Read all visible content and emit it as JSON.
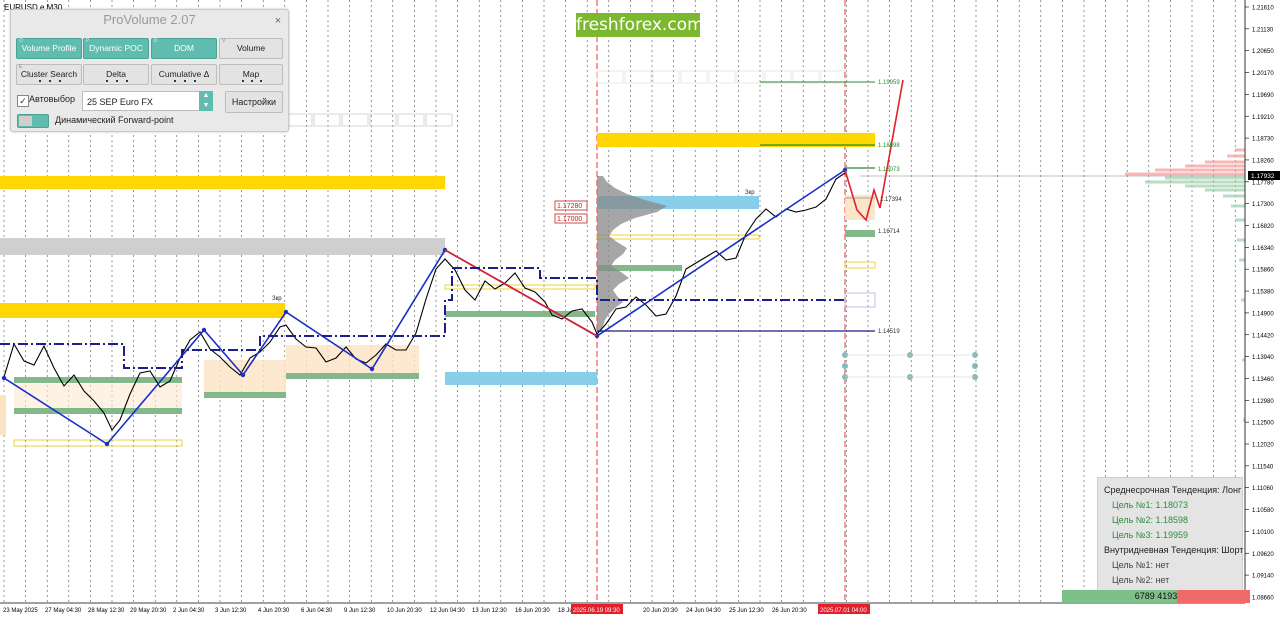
{
  "symbol": "EURUSD.e,M30",
  "brand": "freshforex.com",
  "panel": {
    "title": "ProVolume 2.07",
    "close": "×",
    "buttons": [
      {
        "label": "Volume Profile",
        "key": "O",
        "on": true
      },
      {
        "label": "Dynamic POC",
        "key": "P",
        "on": true
      },
      {
        "label": "DOM",
        "key": "D",
        "on": true
      },
      {
        "label": "Volume",
        "key": "V",
        "on": false
      },
      {
        "label": "Cluster Search",
        "key": "E",
        "on": false
      },
      {
        "label": "Delta",
        "key": "",
        "on": false
      },
      {
        "label": "Cumulative Δ",
        "key": "",
        "on": false
      },
      {
        "label": "Map",
        "key": "",
        "on": false
      }
    ],
    "autoselect_label": "Автовыбор",
    "autoselect_checked": true,
    "contract": "25 SEP Euro FX",
    "settings_label": "Настройки",
    "forward_label": "Динамический Forward-point"
  },
  "price_axis": [
    "1.21610",
    "1.21130",
    "1.20650",
    "1.20170",
    "1.19690",
    "1.19210",
    "1.18730",
    "1.18260",
    "1.17780",
    "1.17300",
    "1.16820",
    "1.16340",
    "1.15860",
    "1.15380",
    "1.14900",
    "1.14420",
    "1.13940",
    "1.13460",
    "1.12980",
    "1.12500",
    "1.12020",
    "1.11540",
    "1.11060",
    "1.10580",
    "1.10100",
    "1.09620",
    "1.09140",
    "1.08660"
  ],
  "current_price": "1.17932",
  "time_axis": [
    "23 May 2025",
    "27 May 04:30",
    "28 May 12:30",
    "29 May 20:30",
    "2 Jun 04:30",
    "3 Jun 12:30",
    "4 Jun 20:30",
    "6 Jun 04:30",
    "9 Jun 12:30",
    "10 Jun 20:30",
    "12 Jun 04:30",
    "13 Jun 12:30",
    "16 Jun 20:30",
    "18 Jun",
    "20 Jun 20:30",
    "24 Jun 04:30",
    "25 Jun 12:30",
    "26 Jun 20:30"
  ],
  "time_markers": [
    "2025.06.19 09:30",
    "2025.07.01 04:00"
  ],
  "level_labels": {
    "l1": "1.19959",
    "l2": "1.18598",
    "l3": "1.18073",
    "l4": "1.17394",
    "l5": "1.16714",
    "l6": "1.14519",
    "poc1": "1.17280",
    "poc2": "1.17000"
  },
  "zone_labels": [
    "Зкр",
    "Зкр",
    "Зкр"
  ],
  "info": {
    "midterm": "Среднесрочная Тенденция: Лонг",
    "t1": "Цель №1: 1.18073",
    "t2": "Цель №2: 1.18598",
    "t3": "Цель №3: 1.19959",
    "intraday": "Внутридневная Тенденция: Шорт",
    "i1": "Цель №1: нет",
    "i2": "Цель №2: нет"
  },
  "volume_bar": {
    "buy": "6789",
    "sell": "4193"
  },
  "colors": {
    "accent": "#5fbcae",
    "brand": "#7cb82f",
    "zigzag": "#1a2fc9",
    "gold": "#ffd600",
    "blue_zone": "#87ceea",
    "green_zone": "#82b88a",
    "red": "#e0202a"
  }
}
